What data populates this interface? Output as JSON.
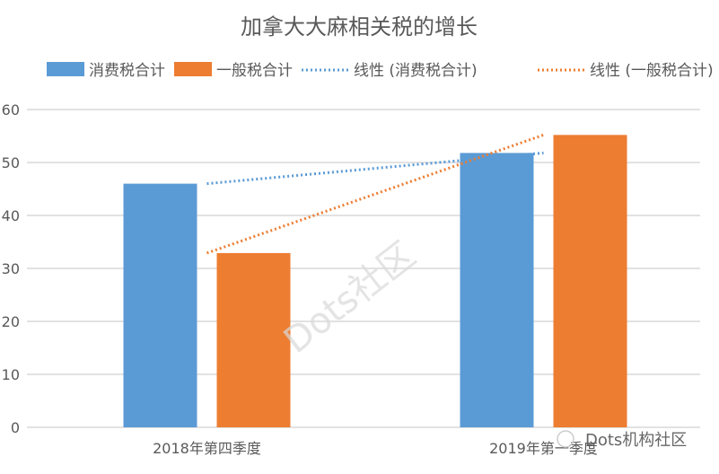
{
  "chart_data": {
    "type": "bar",
    "title": "加拿大大麻相关税的增长",
    "categories": [
      "2018年第四季度",
      "2019年第一季度"
    ],
    "series": [
      {
        "name": "消费税合计",
        "values": [
          46.0,
          51.8
        ],
        "color": "#5B9BD5"
      },
      {
        "name": "一般税合计",
        "values": [
          32.9,
          55.2
        ],
        "color": "#ED7D31"
      }
    ],
    "trendlines": [
      {
        "name": "线性 (消费税合计)",
        "type": "linear",
        "of_series": "消费税合计",
        "color": "#5B9BD5"
      },
      {
        "name": "线性 (一般税合计)",
        "type": "linear",
        "of_series": "一般税合计",
        "color": "#ED7D31"
      }
    ],
    "ylim": [
      0,
      60
    ],
    "yticks": [
      0,
      10,
      20,
      30,
      40,
      50,
      60
    ],
    "grid": true,
    "legend": "top",
    "xlabel": "",
    "ylabel": ""
  },
  "watermarks": [
    "Dots社区",
    "Dots机构社区"
  ]
}
